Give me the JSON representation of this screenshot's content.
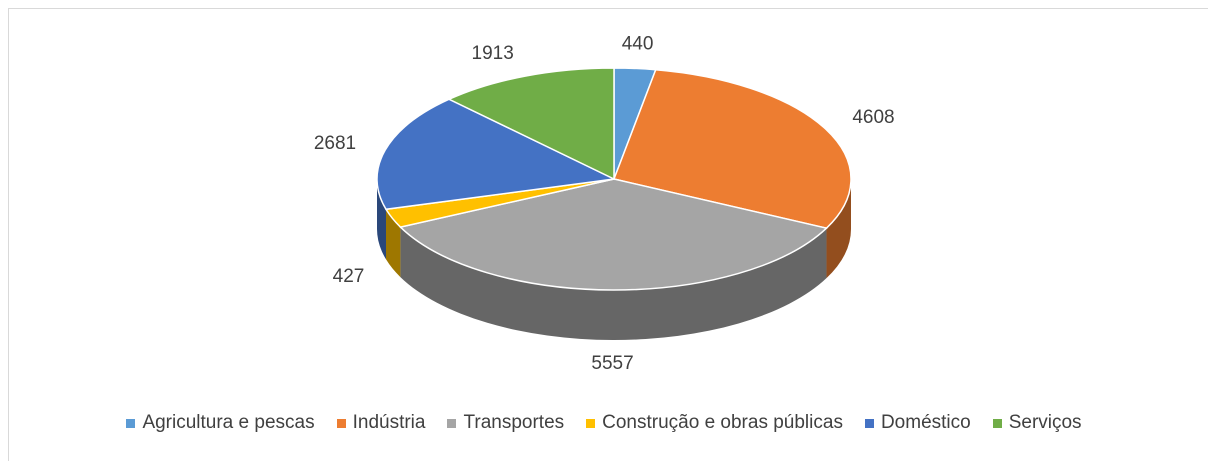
{
  "chart_data": {
    "type": "pie3d",
    "categories": [
      "Agricultura e pescas",
      "Indústria",
      "Transportes",
      "Construção e obras públicas",
      "Doméstico",
      "Serviços"
    ],
    "values": [
      440,
      4608,
      5557,
      427,
      2681,
      1913
    ],
    "colors": [
      "#5b9bd5",
      "#ed7d31",
      "#a5a5a5",
      "#ffc000",
      "#4472c4",
      "#70ad47"
    ]
  }
}
